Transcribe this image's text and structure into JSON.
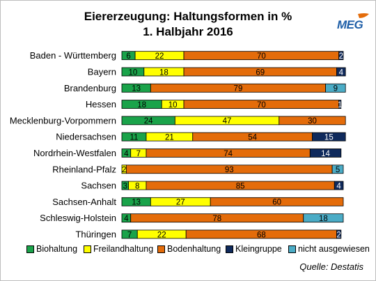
{
  "chart_data": {
    "type": "bar",
    "orientation": "horizontal",
    "stacked": true,
    "title": "Eiererzeugung: Haltungsformen in %",
    "subtitle": "1. Halbjahr 2016",
    "categories": [
      "Baden - Württemberg",
      "Bayern",
      "Brandenburg",
      "Hessen",
      "Mecklenburg-Vorpommern",
      "Niedersachsen",
      "Nordrhein-Westfalen",
      "Rheinland-Pfalz",
      "Sachsen",
      "Sachsen-Anhalt",
      "Schleswig-Holstein",
      "Thüringen"
    ],
    "series": [
      {
        "name": "Biohaltung",
        "color": "#1aa34a",
        "values": [
          6,
          10,
          13,
          18,
          24,
          11,
          4,
          0,
          3,
          13,
          4,
          7
        ],
        "labels": [
          "6",
          "10",
          "13",
          "18",
          "24",
          "11",
          "4",
          "",
          "3",
          "13",
          "4",
          "7"
        ]
      },
      {
        "name": "Freilandhaltung",
        "color": "#ffff00",
        "values": [
          22,
          18,
          0,
          10,
          47,
          21,
          7,
          2,
          8,
          27,
          0,
          22
        ],
        "labels": [
          "22",
          "18",
          "",
          "10",
          "47",
          "21",
          "7",
          "2",
          "8",
          "27",
          "",
          "22"
        ]
      },
      {
        "name": "Bodenhaltung",
        "color": "#e46c0a",
        "values": [
          70,
          69,
          79,
          70,
          30,
          54,
          74,
          93,
          85,
          60,
          78,
          68
        ],
        "labels": [
          "70",
          "69",
          "79",
          "70",
          "30",
          "54",
          "74",
          "93",
          "85",
          "60",
          "78",
          "68"
        ]
      },
      {
        "name": "Kleingruppe",
        "color": "#0f2a5c",
        "values": [
          2,
          4,
          0,
          1,
          0,
          15,
          14,
          0,
          4,
          0,
          0,
          2
        ],
        "labels": [
          "2",
          "4",
          "",
          "1",
          "",
          "15",
          "14",
          "",
          "4",
          "",
          "",
          "2"
        ]
      },
      {
        "name": "nicht ausgewiesen",
        "color": "#4bacc6",
        "values": [
          0,
          0,
          9,
          0,
          0,
          0,
          0,
          5,
          0,
          0,
          18,
          0
        ],
        "labels": [
          "",
          "",
          "9",
          "",
          "",
          "",
          "",
          "5",
          "",
          "",
          "18",
          ""
        ]
      }
    ],
    "xlim": [
      0,
      100
    ],
    "legend_position": "bottom"
  },
  "logo": {
    "text": "MEG",
    "accent_color": "#e46c0a"
  },
  "source": "Quelle: Destatis"
}
